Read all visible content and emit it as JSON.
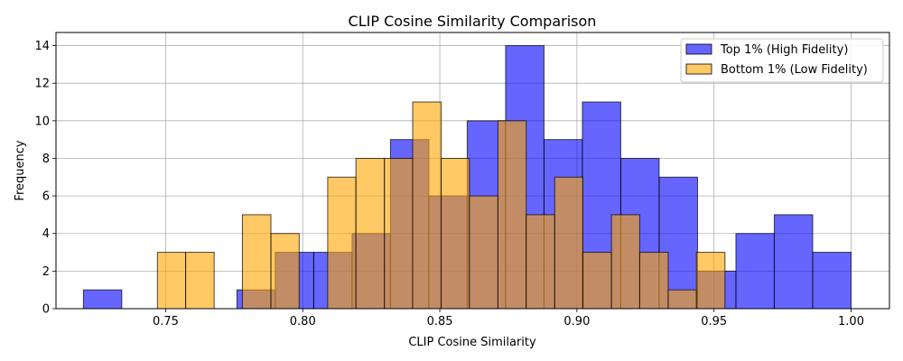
{
  "chart_data": {
    "type": "histogram",
    "title": "CLIP Cosine Similarity Comparison",
    "xlabel": "CLIP Cosine Similarity",
    "ylabel": "Frequency",
    "xlim": [
      0.71,
      1.014
    ],
    "ylim": [
      0,
      14.7
    ],
    "xticks": [
      0.75,
      0.8,
      0.85,
      0.9,
      0.95,
      1.0
    ],
    "xtick_labels": [
      "0.75",
      "0.80",
      "0.85",
      "0.90",
      "0.95",
      "1.00"
    ],
    "yticks": [
      0,
      2,
      4,
      6,
      8,
      10,
      12,
      14
    ],
    "ytick_labels": [
      "0",
      "2",
      "4",
      "6",
      "8",
      "10",
      "12",
      "14"
    ],
    "grid": true,
    "legend_position": "top-right",
    "series": [
      {
        "name": "Top 1% (High Fidelity)",
        "color": "#0000ff",
        "alpha": 0.6,
        "bins": [
          {
            "x0": 0.72,
            "x1": 0.734,
            "count": 1
          },
          {
            "x0": 0.734,
            "x1": 0.748,
            "count": 0
          },
          {
            "x0": 0.748,
            "x1": 0.762,
            "count": 0
          },
          {
            "x0": 0.762,
            "x1": 0.776,
            "count": 0
          },
          {
            "x0": 0.776,
            "x1": 0.79,
            "count": 1
          },
          {
            "x0": 0.79,
            "x1": 0.804,
            "count": 3
          },
          {
            "x0": 0.804,
            "x1": 0.818,
            "count": 3
          },
          {
            "x0": 0.818,
            "x1": 0.832,
            "count": 4
          },
          {
            "x0": 0.832,
            "x1": 0.846,
            "count": 9
          },
          {
            "x0": 0.846,
            "x1": 0.86,
            "count": 6
          },
          {
            "x0": 0.86,
            "x1": 0.874,
            "count": 10
          },
          {
            "x0": 0.874,
            "x1": 0.888,
            "count": 14
          },
          {
            "x0": 0.888,
            "x1": 0.902,
            "count": 9
          },
          {
            "x0": 0.902,
            "x1": 0.916,
            "count": 11
          },
          {
            "x0": 0.916,
            "x1": 0.93,
            "count": 8
          },
          {
            "x0": 0.93,
            "x1": 0.944,
            "count": 7
          },
          {
            "x0": 0.944,
            "x1": 0.958,
            "count": 2
          },
          {
            "x0": 0.958,
            "x1": 0.972,
            "count": 4
          },
          {
            "x0": 0.972,
            "x1": 0.986,
            "count": 5
          },
          {
            "x0": 0.986,
            "x1": 1.0,
            "count": 3
          }
        ]
      },
      {
        "name": "Bottom 1% (Low Fidelity)",
        "color": "#ffa500",
        "alpha": 0.6,
        "bins": [
          {
            "x0": 0.747,
            "x1": 0.7573,
            "count": 3
          },
          {
            "x0": 0.7573,
            "x1": 0.7677,
            "count": 3
          },
          {
            "x0": 0.7677,
            "x1": 0.778,
            "count": 0
          },
          {
            "x0": 0.778,
            "x1": 0.7884,
            "count": 5
          },
          {
            "x0": 0.7884,
            "x1": 0.7987,
            "count": 4
          },
          {
            "x0": 0.7987,
            "x1": 0.8091,
            "count": 0
          },
          {
            "x0": 0.8091,
            "x1": 0.8194,
            "count": 7
          },
          {
            "x0": 0.8194,
            "x1": 0.8298,
            "count": 8
          },
          {
            "x0": 0.8298,
            "x1": 0.8401,
            "count": 8
          },
          {
            "x0": 0.8401,
            "x1": 0.8505,
            "count": 11
          },
          {
            "x0": 0.8505,
            "x1": 0.8608,
            "count": 8
          },
          {
            "x0": 0.8608,
            "x1": 0.8712,
            "count": 6
          },
          {
            "x0": 0.8712,
            "x1": 0.8815,
            "count": 10
          },
          {
            "x0": 0.8815,
            "x1": 0.8919,
            "count": 5
          },
          {
            "x0": 0.8919,
            "x1": 0.9022,
            "count": 7
          },
          {
            "x0": 0.9022,
            "x1": 0.9126,
            "count": 3
          },
          {
            "x0": 0.9126,
            "x1": 0.9229,
            "count": 5
          },
          {
            "x0": 0.9229,
            "x1": 0.9333,
            "count": 3
          },
          {
            "x0": 0.9333,
            "x1": 0.9436,
            "count": 1
          },
          {
            "x0": 0.9436,
            "x1": 0.954,
            "count": 3
          }
        ]
      }
    ]
  }
}
